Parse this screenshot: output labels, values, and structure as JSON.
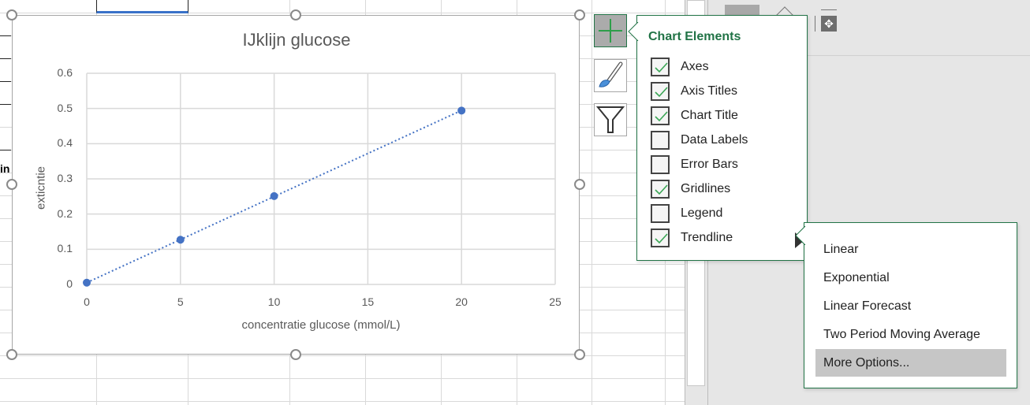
{
  "spreadsheet": {
    "partial_cell_text": "in"
  },
  "chart_data": {
    "type": "scatter",
    "title": "IJklijn glucose",
    "xlabel": "concentratie glucose (mmol/L)",
    "ylabel": "exticntie",
    "x": [
      0,
      5,
      10,
      20
    ],
    "y": [
      0.005,
      0.127,
      0.251,
      0.494
    ],
    "xlim": [
      0,
      25
    ],
    "ylim": [
      0,
      0.6
    ],
    "xticks": [
      "0",
      "5",
      "10",
      "15",
      "20",
      "25"
    ],
    "yticks": [
      "0",
      "0.1",
      "0.2",
      "0.3",
      "0.4",
      "0.5",
      "0.6"
    ],
    "grid": true,
    "trendline": "linear",
    "marker_color": "#4472c4"
  },
  "chart_elements": {
    "title": "Chart Elements",
    "items": [
      {
        "label": "Axes",
        "checked": true
      },
      {
        "label": "Axis Titles",
        "checked": true
      },
      {
        "label": "Chart Title",
        "checked": true
      },
      {
        "label": "Data Labels",
        "checked": false
      },
      {
        "label": "Error Bars",
        "checked": false
      },
      {
        "label": "Gridlines",
        "checked": true
      },
      {
        "label": "Legend",
        "checked": false
      },
      {
        "label": "Trendline",
        "checked": true
      }
    ]
  },
  "trendline_menu": {
    "options": [
      "Linear",
      "Exponential",
      "Linear Forecast",
      "Two Period Moving Average",
      "More Options..."
    ],
    "highlighted": "More Options..."
  },
  "colors": {
    "accent": "#217346",
    "series": "#4472c4"
  }
}
